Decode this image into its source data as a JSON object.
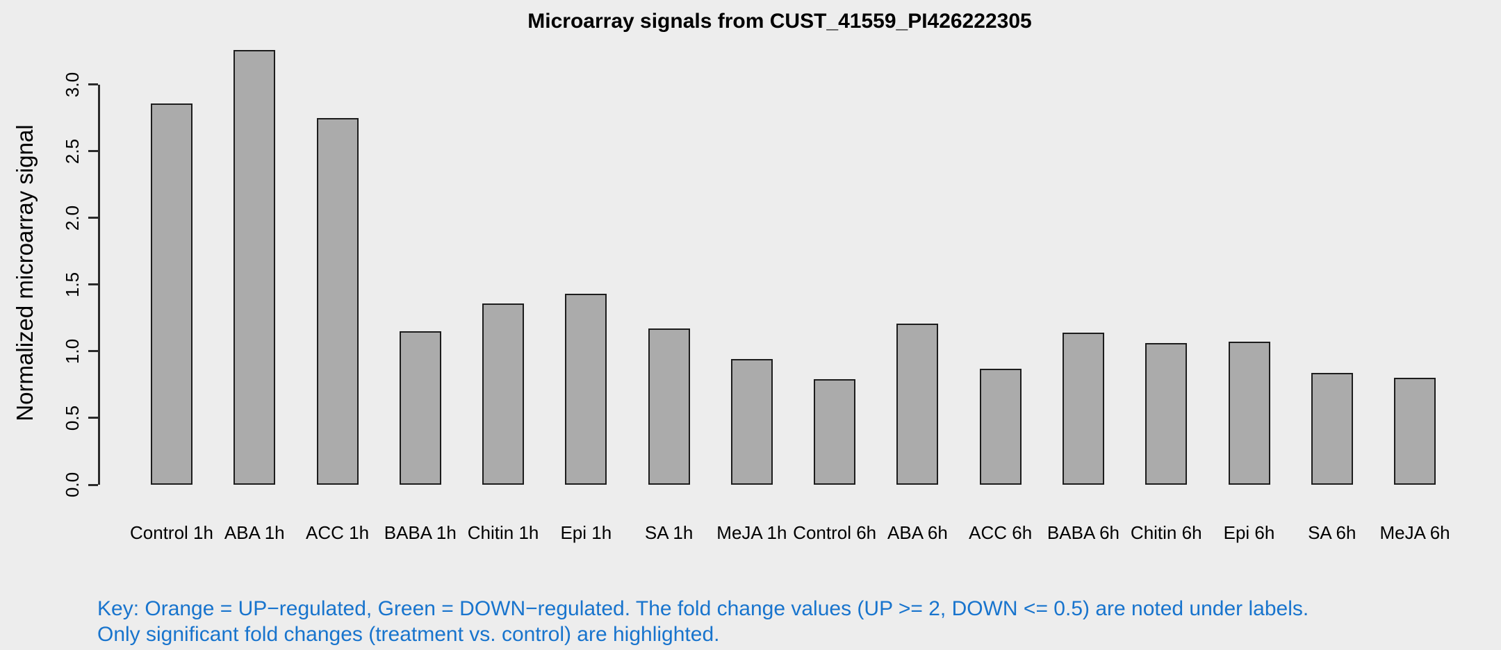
{
  "chart_data": {
    "type": "bar",
    "title": "Microarray signals from CUST_41559_PI426222305",
    "xlabel": "",
    "ylabel": "Normalized microarray signal",
    "ylim": [
      0,
      3.0
    ],
    "yticks": [
      "0.0",
      "0.5",
      "1.0",
      "1.5",
      "2.0",
      "2.5",
      "3.0"
    ],
    "grid": false,
    "legend": false,
    "categories": [
      "Control 1h",
      "ABA 1h",
      "ACC 1h",
      "BABA 1h",
      "Chitin 1h",
      "Epi 1h",
      "SA 1h",
      "MeJA 1h",
      "Control 6h",
      "ABA 6h",
      "ACC 6h",
      "BABA 6h",
      "Chitin 6h",
      "Epi 6h",
      "SA 6h",
      "MeJA 6h"
    ],
    "values": [
      2.86,
      3.26,
      2.75,
      1.15,
      1.36,
      1.43,
      1.17,
      0.94,
      0.79,
      1.21,
      0.87,
      1.14,
      1.06,
      1.07,
      0.84,
      0.8
    ]
  },
  "footnote": {
    "line1": "Key: Orange = UP−regulated, Green = DOWN−regulated. The fold change values (UP >= 2, DOWN <= 0.5) are noted under labels.",
    "line2": "Only significant fold changes (treatment vs. control) are highlighted."
  },
  "colors": {
    "background": "#EDEDED",
    "bar_fill": "#ABABAB",
    "bar_border": "#1C1C1C",
    "axis": "#2A2A2A",
    "text": "#000000",
    "key_text": "#1874CD"
  }
}
